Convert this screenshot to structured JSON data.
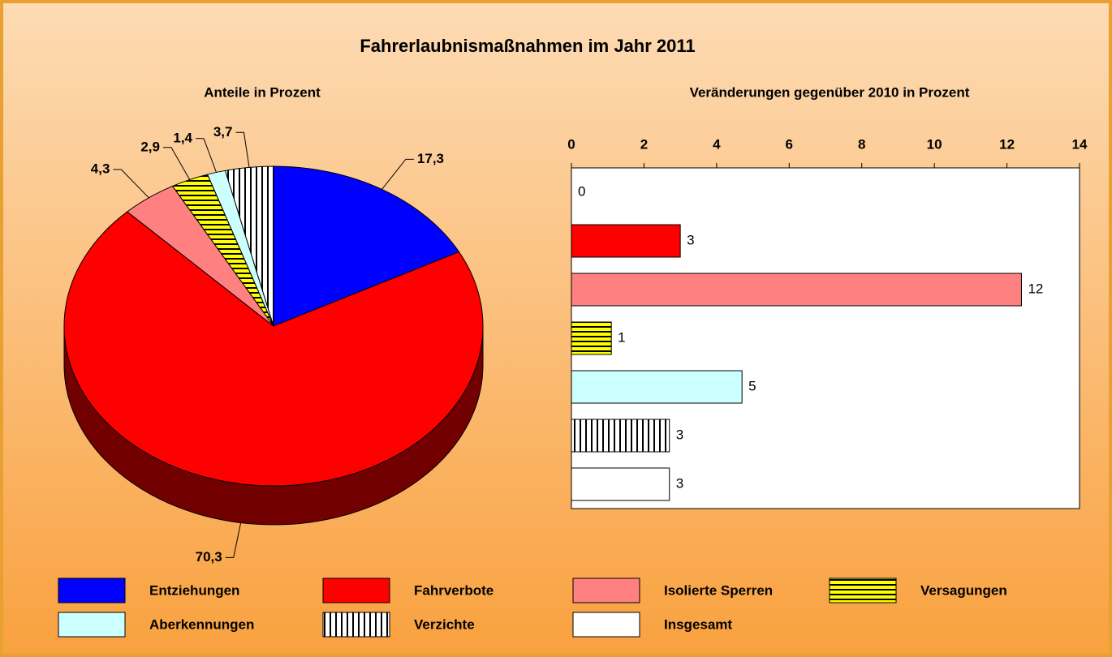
{
  "title": "Fahrerlaubnismaßnahmen im Jahr 2011",
  "chart_data": [
    {
      "type": "pie",
      "title": "Anteile in Prozent",
      "values": [
        17.3,
        70.3,
        4.3,
        2.9,
        1.4,
        3.7
      ],
      "value_labels": [
        "17,3",
        "70,3",
        "4,3",
        "2,9",
        "1,4",
        "3,7"
      ],
      "colors": [
        "#0000ff",
        "#ff0000",
        "#ff8080",
        "#ffff00",
        "#ccffff",
        "#ffffff"
      ],
      "hatches": [
        "none",
        "none",
        "none",
        "horizontal",
        "none",
        "vertical"
      ]
    },
    {
      "type": "bar",
      "title": "Veränderungen gegenüber 2010 in Prozent",
      "categories": [
        "Entziehungen",
        "Fahrverbote",
        "Isolierte Sperren",
        "Versagungen",
        "Aberkennungen",
        "Verzichte",
        "Insgesamt"
      ],
      "values": [
        0,
        3,
        12.4,
        1.1,
        4.7,
        2.7,
        2.7
      ],
      "value_labels": [
        "0",
        "3",
        "12",
        "1",
        "5",
        "3",
        "3"
      ],
      "colors": [
        "#0000ff",
        "#ff0000",
        "#ff8080",
        "#ffff00",
        "#ccffff",
        "#ffffff",
        "#ffffff"
      ],
      "hatches": [
        "none",
        "none",
        "none",
        "horizontal",
        "none",
        "vertical",
        "none"
      ],
      "xlim": [
        0,
        14
      ],
      "xticks": [
        0,
        2,
        4,
        6,
        8,
        10,
        12,
        14
      ]
    }
  ]
}
